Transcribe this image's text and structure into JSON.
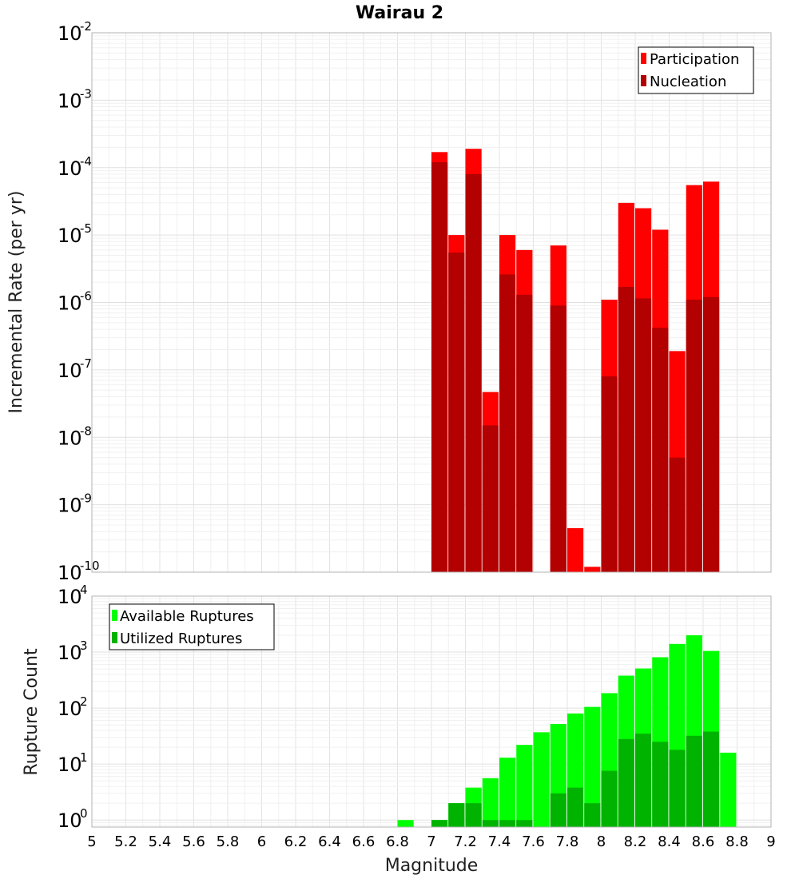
{
  "chart_data": [
    {
      "type": "bar",
      "title": "Wairau 2",
      "xlabel": "",
      "ylabel": "Incremental Rate (per yr)",
      "yscale": "log",
      "ylim": [
        1e-10,
        0.01
      ],
      "y_tick_exponents": [
        "-10",
        "-9",
        "-8",
        "-7",
        "-6",
        "-5",
        "-4",
        "-3",
        "-2"
      ],
      "xlim": [
        5,
        9
      ],
      "grid": true,
      "legend_position": "top-right",
      "bar_width": 0.095,
      "x": [
        7.0,
        7.1,
        7.2,
        7.3,
        7.4,
        7.5,
        7.7,
        7.8,
        7.9,
        8.0,
        8.1,
        8.2,
        8.3,
        8.4,
        8.5,
        8.6
      ],
      "series": [
        {
          "name": "Participation",
          "color": "#ff0000",
          "values": [
            0.00017,
            1e-05,
            0.00019,
            4.7e-08,
            1e-05,
            6e-06,
            7e-06,
            4.5e-10,
            1.2e-10,
            1.1e-06,
            3e-05,
            2.5e-05,
            1.2e-05,
            1.9e-07,
            5.5e-05,
            6.2e-05
          ]
        },
        {
          "name": "Nucleation",
          "color": "#b30000",
          "values": [
            0.00012,
            5.5e-06,
            8e-05,
            1.5e-08,
            2.6e-06,
            1.3e-06,
            9e-07,
            null,
            null,
            8e-08,
            1.7e-06,
            1.15e-06,
            4.2e-07,
            5e-09,
            1.1e-06,
            1.2e-06
          ]
        }
      ]
    },
    {
      "type": "bar",
      "title": "",
      "xlabel": "Magnitude",
      "ylabel": "Rupture Count",
      "yscale": "log",
      "ylim": [
        0.75,
        10000
      ],
      "y_tick_exponents": [
        "0",
        "1",
        "2",
        "3",
        "4"
      ],
      "xlim": [
        5,
        9
      ],
      "x_tick_labels": [
        "5",
        "5.2",
        "5.4",
        "5.6",
        "5.8",
        "6",
        "6.2",
        "6.4",
        "6.6",
        "6.8",
        "7",
        "7.2",
        "7.4",
        "7.6",
        "7.8",
        "8",
        "8.2",
        "8.4",
        "8.6",
        "8.8",
        "9"
      ],
      "grid": true,
      "legend_position": "top-left",
      "bar_width": 0.095,
      "x": [
        6.8,
        7.0,
        7.1,
        7.2,
        7.3,
        7.4,
        7.5,
        7.6,
        7.7,
        7.8,
        7.9,
        8.0,
        8.1,
        8.2,
        8.3,
        8.4,
        8.5,
        8.6,
        8.7
      ],
      "series": [
        {
          "name": "Available Ruptures",
          "color": "#00ff00",
          "values": [
            1,
            1,
            2,
            3.8,
            5.6,
            13,
            22,
            37,
            52,
            80,
            105,
            185,
            380,
            510,
            810,
            1400,
            2000,
            1050,
            16
          ]
        },
        {
          "name": "Utilized Ruptures",
          "color": "#00b300",
          "values": [
            null,
            1,
            2,
            2,
            1,
            1,
            1,
            null,
            3,
            3.8,
            2,
            7.6,
            28,
            35,
            25,
            18,
            32,
            38,
            null
          ]
        }
      ]
    }
  ]
}
